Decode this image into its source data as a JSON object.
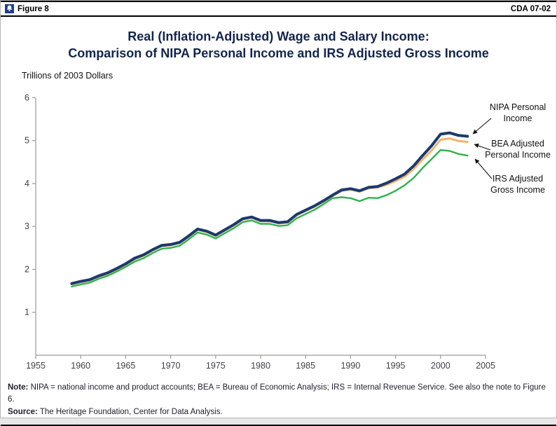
{
  "header": {
    "figure_label": "Figure 8",
    "doc_code": "CDA 07-02",
    "logo": "heritage-bell-icon"
  },
  "title": {
    "line1": "Real (Inflation-Adjusted) Wage and Salary Income:",
    "line2": "Comparison of NIPA Personal Income and IRS Adjusted Gross Income"
  },
  "y_axis_label": "Trillions of 2003 Dollars",
  "chart_data": {
    "type": "line",
    "title": "Real (Inflation-Adjusted) Wage and Salary Income: Comparison of NIPA Personal Income and IRS Adjusted Gross Income",
    "xlabel": "",
    "ylabel": "Trillions of 2003 Dollars",
    "xlim": [
      1955,
      2005
    ],
    "ylim": [
      0,
      6
    ],
    "x_ticks": [
      1955,
      1960,
      1965,
      1970,
      1975,
      1980,
      1985,
      1990,
      1995,
      2000,
      2005
    ],
    "y_ticks": [
      1,
      2,
      3,
      4,
      5,
      6
    ],
    "grid": false,
    "legend_position": "right-annotations",
    "x": [
      1959,
      1960,
      1961,
      1962,
      1963,
      1964,
      1965,
      1966,
      1967,
      1968,
      1969,
      1970,
      1971,
      1972,
      1973,
      1974,
      1975,
      1976,
      1977,
      1978,
      1979,
      1980,
      1981,
      1982,
      1983,
      1984,
      1985,
      1986,
      1987,
      1988,
      1989,
      1990,
      1991,
      1992,
      1993,
      1994,
      1995,
      1996,
      1997,
      1998,
      1999,
      2000,
      2001,
      2002,
      2003
    ],
    "series": [
      {
        "name": "NIPA Personal Income",
        "color": "#1b3a6e",
        "width": 4,
        "values": [
          1.67,
          1.72,
          1.76,
          1.85,
          1.92,
          2.02,
          2.13,
          2.26,
          2.34,
          2.46,
          2.56,
          2.58,
          2.63,
          2.78,
          2.94,
          2.89,
          2.8,
          2.92,
          3.04,
          3.18,
          3.22,
          3.14,
          3.14,
          3.09,
          3.11,
          3.28,
          3.38,
          3.48,
          3.6,
          3.73,
          3.85,
          3.88,
          3.83,
          3.91,
          3.93,
          4.01,
          4.11,
          4.22,
          4.41,
          4.65,
          4.88,
          5.15,
          5.18,
          5.12,
          5.1
        ]
      },
      {
        "name": "BEA Adjusted Personal Income",
        "color": "#f4b26a",
        "width": 3,
        "values": [
          1.65,
          1.7,
          1.74,
          1.83,
          1.9,
          2.0,
          2.11,
          2.24,
          2.32,
          2.44,
          2.54,
          2.56,
          2.61,
          2.76,
          2.92,
          2.87,
          2.78,
          2.9,
          3.02,
          3.16,
          3.2,
          3.12,
          3.12,
          3.07,
          3.09,
          3.26,
          3.36,
          3.46,
          3.58,
          3.71,
          3.83,
          3.86,
          3.81,
          3.89,
          3.91,
          3.97,
          4.06,
          4.16,
          4.34,
          4.56,
          4.77,
          5.02,
          5.05,
          4.99,
          4.97
        ]
      },
      {
        "name": "IRS Adjusted Gross Income",
        "color": "#2eb34d",
        "width": 2.4,
        "values": [
          1.6,
          1.65,
          1.69,
          1.78,
          1.85,
          1.95,
          2.06,
          2.18,
          2.26,
          2.38,
          2.48,
          2.5,
          2.55,
          2.7,
          2.86,
          2.81,
          2.72,
          2.84,
          2.96,
          3.1,
          3.14,
          3.06,
          3.06,
          3.01,
          3.03,
          3.19,
          3.29,
          3.39,
          3.52,
          3.66,
          3.68,
          3.66,
          3.59,
          3.67,
          3.66,
          3.73,
          3.83,
          3.96,
          4.13,
          4.36,
          4.57,
          4.78,
          4.76,
          4.69,
          4.65
        ]
      }
    ]
  },
  "annotations": [
    {
      "lines": [
        "NIPA Personal",
        "Income"
      ]
    },
    {
      "lines": [
        "BEA Adjusted",
        "Personal Income"
      ]
    },
    {
      "lines": [
        "IRS Adjusted",
        "Gross Income"
      ]
    }
  ],
  "notes": {
    "note_label": "Note:",
    "note_text": "NIPA = national income and product accounts; BEA = Bureau of Economic Analysis; IRS = Internal Revenue Service. See also the note to Figure 6.",
    "source_label": "Source:",
    "source_text": "The Heritage Foundation, Center for Data Analysis."
  }
}
